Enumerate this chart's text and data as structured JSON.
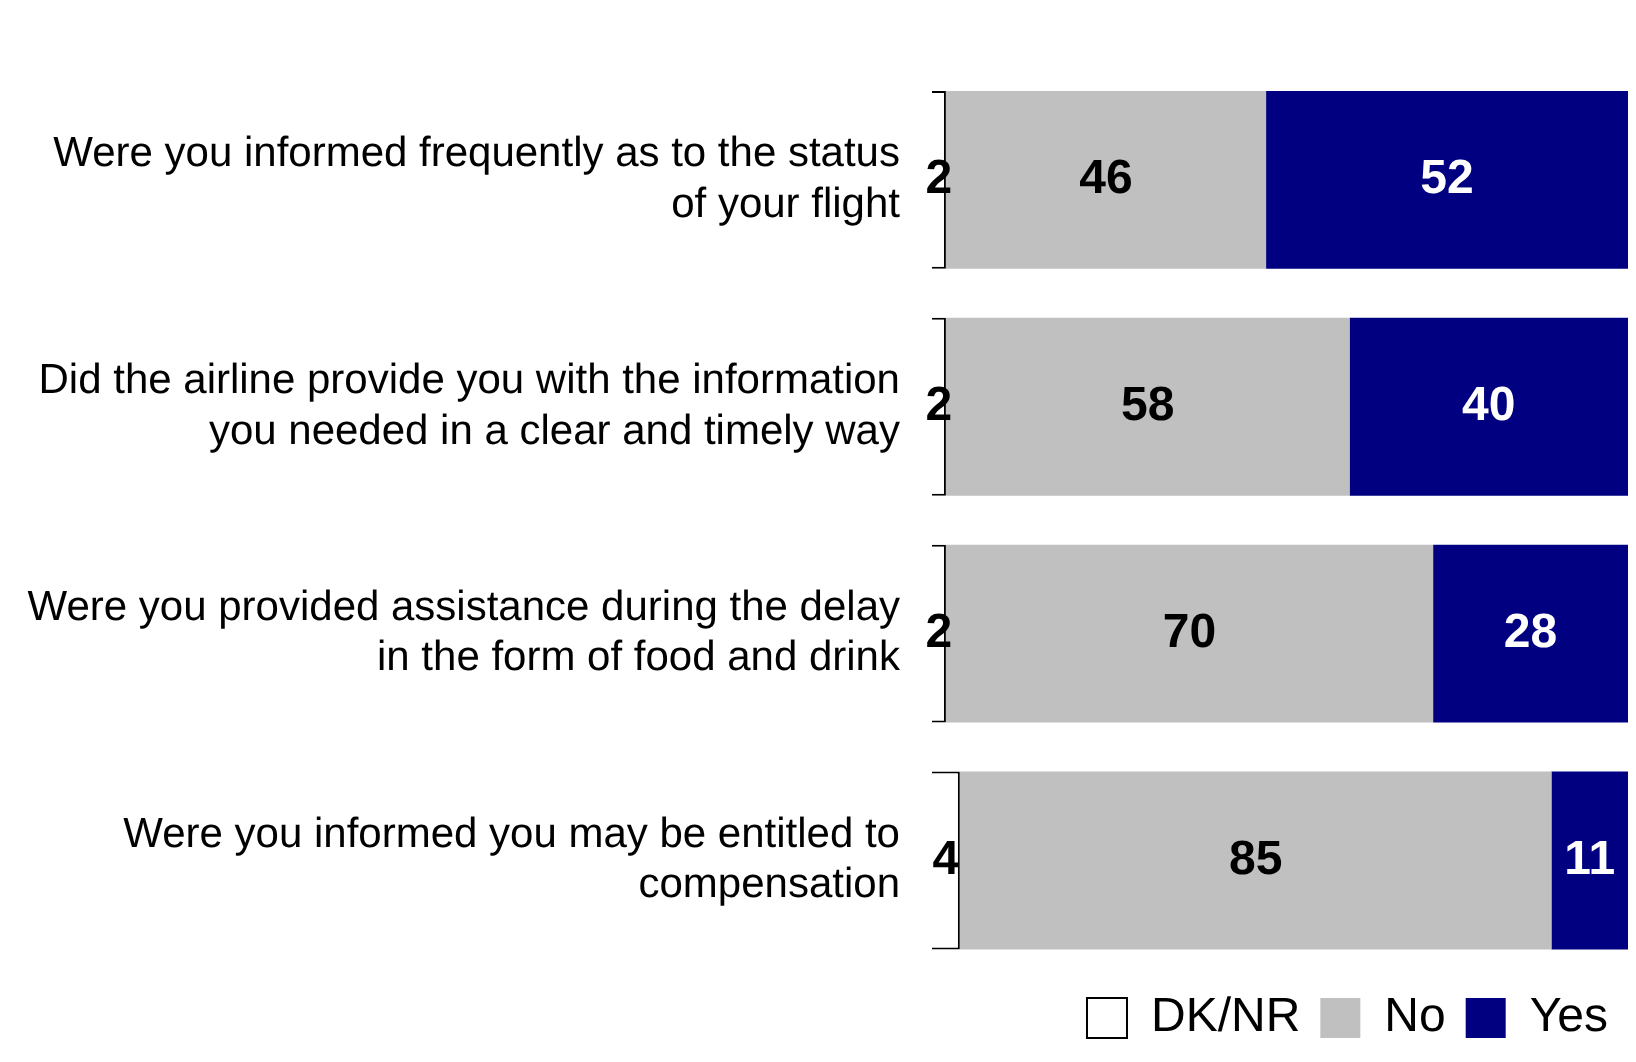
{
  "chart_data": {
    "type": "bar",
    "orientation": "horizontal",
    "stacked": true,
    "categories": [
      "Were you informed frequently as to the status of your flight",
      "Did the airline provide you with the information you needed in a clear and timely way",
      "Were you provided assistance during the delay in the form of food and drink",
      "Were you informed you may be entitled to compensation"
    ],
    "series": [
      {
        "name": "DK/NR",
        "color": "#ffffff",
        "values": [
          2,
          2,
          2,
          4
        ]
      },
      {
        "name": "No",
        "color": "#c0c0c0",
        "values": [
          46,
          58,
          70,
          85
        ]
      },
      {
        "name": "Yes",
        "color": "#000080",
        "values": [
          52,
          40,
          28,
          11
        ]
      }
    ],
    "xlim": [
      0,
      100
    ],
    "tick_labels": "y",
    "data_labels": true,
    "legend": "bottom right"
  }
}
